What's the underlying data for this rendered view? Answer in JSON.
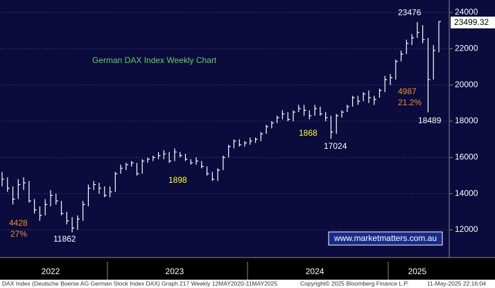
{
  "chart_data": {
    "type": "ohlc",
    "title": "German DAX Index Weekly Chart",
    "color": "#ffffff",
    "categories": [
      null,
      null,
      null,
      null,
      null,
      null,
      null,
      null,
      null,
      "2022",
      null,
      null,
      null,
      null,
      null,
      null,
      null,
      null,
      null,
      null,
      null,
      null,
      null,
      null,
      null,
      null,
      null,
      null,
      null,
      null,
      null,
      null,
      "2023",
      null,
      null,
      null,
      null,
      null,
      null,
      null,
      null,
      null,
      null,
      null,
      null,
      null,
      null,
      null,
      null,
      null,
      null,
      null,
      null,
      null,
      null,
      null,
      null,
      null,
      "2024",
      null,
      null,
      null,
      null,
      null,
      null,
      null,
      null,
      null,
      null,
      null,
      null,
      null,
      null,
      null,
      null,
      null,
      null,
      "2025",
      null,
      null,
      null,
      null
    ],
    "high": [
      15200,
      14900,
      14400,
      14800,
      14900,
      14700,
      13700,
      13300,
      13700,
      14200,
      14000,
      13600,
      13000,
      12700,
      12800,
      13600,
      14500,
      14700,
      14600,
      14400,
      14400,
      15200,
      15600,
      15700,
      15800,
      15700,
      15900,
      16000,
      16100,
      16300,
      16400,
      16300,
      16500,
      16300,
      16200,
      15900,
      16000,
      15800,
      15500,
      15200,
      15400,
      16100,
      16700,
      17000,
      17000,
      16900,
      17100,
      17100,
      17400,
      17800,
      18000,
      18300,
      18600,
      18500,
      18600,
      18900,
      18900,
      18600,
      18900,
      18800,
      18500,
      18300,
      18400,
      18600,
      18900,
      19400,
      19400,
      19600,
      19700,
      19400,
      19800,
      20500,
      20600,
      21400,
      21900,
      22500,
      22800,
      23476,
      23300,
      22600,
      22200,
      23500
    ],
    "low": [
      14400,
      14100,
      13400,
      13700,
      14200,
      13500,
      12900,
      12500,
      12800,
      13300,
      13400,
      12800,
      12300,
      11862,
      12000,
      12500,
      13300,
      14200,
      14000,
      13800,
      13800,
      14100,
      15100,
      15300,
      15500,
      15000,
      15100,
      15700,
      15800,
      15900,
      15900,
      15700,
      15800,
      16000,
      15800,
      15600,
      15600,
      15400,
      15000,
      14700,
      14700,
      15300,
      16000,
      16500,
      16600,
      16600,
      16700,
      16800,
      16900,
      17300,
      17600,
      17900,
      18100,
      18000,
      18000,
      18500,
      18300,
      18100,
      18300,
      18300,
      18000,
      17024,
      17300,
      18200,
      18500,
      18800,
      18900,
      19100,
      19000,
      18900,
      19300,
      19600,
      20000,
      20300,
      21300,
      21700,
      22200,
      22600,
      22300,
      18489,
      20300,
      21800
    ],
    "close": [
      14800,
      14300,
      13700,
      14500,
      14600,
      13600,
      13100,
      12800,
      13400,
      13900,
      13600,
      12900,
      12500,
      12100,
      12600,
      13400,
      14300,
      14500,
      14300,
      13900,
      14100,
      15100,
      15400,
      15600,
      15700,
      15100,
      15800,
      15900,
      16000,
      16100,
      16200,
      15800,
      16300,
      16100,
      15900,
      15700,
      15800,
      15500,
      15100,
      14800,
      15300,
      16000,
      16600,
      16900,
      16700,
      16800,
      16900,
      17000,
      17300,
      17700,
      17900,
      18200,
      18400,
      18100,
      18500,
      18700,
      18600,
      18300,
      18700,
      18400,
      18200,
      17400,
      18300,
      18500,
      18800,
      19300,
      19100,
      19500,
      19300,
      19200,
      19700,
      20300,
      20400,
      21300,
      21700,
      22300,
      22600,
      22900,
      22500,
      20300,
      21900,
      23499.32
    ],
    "ylim": [
      10550,
      24690
    ],
    "yticks": [
      12000,
      14000,
      16000,
      18000,
      20000,
      22000,
      24000
    ],
    "grid": true,
    "annotations": [
      "4987",
      "21.2%",
      "1868",
      "1898",
      "4428",
      "27%"
    ],
    "watermark": "www.marketmatters.com.au",
    "footer": [
      "DAX Index (Deutsche Boerse AG German Stock Index DAX) Graph 217  Weekly 12MAY2020-11MAY2025",
      "Copyright© 2025 Bloomberg Finance L.P.",
      "11-May-2025 22:16:04"
    ]
  }
}
